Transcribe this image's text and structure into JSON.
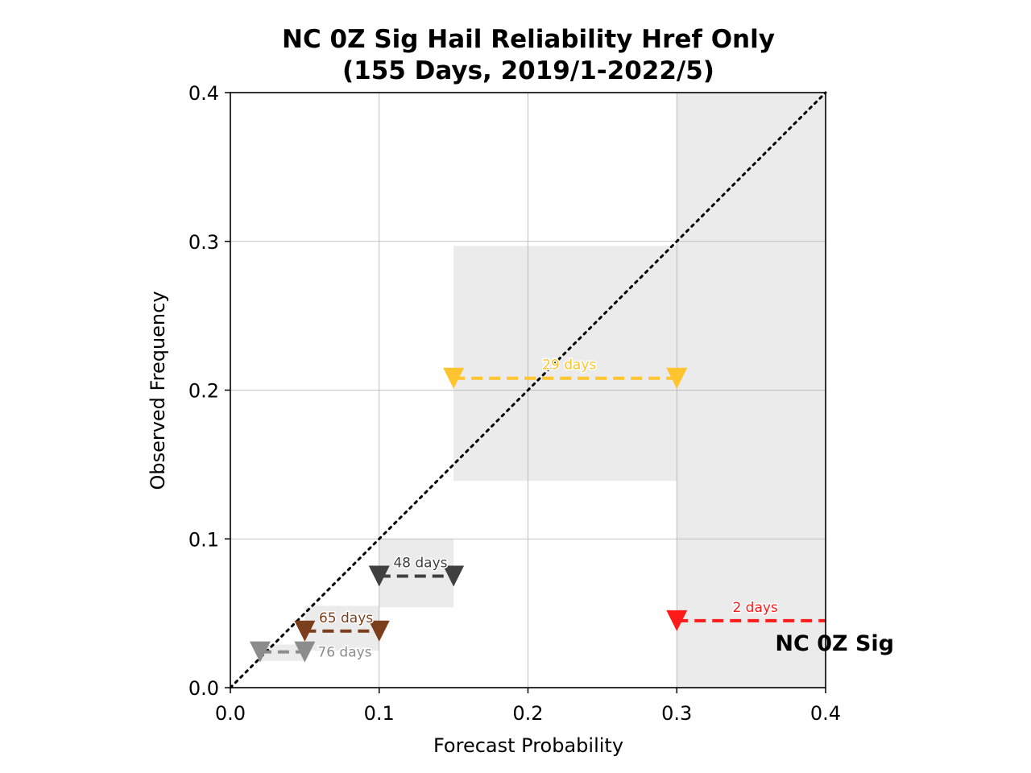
{
  "chart_data": {
    "type": "scatter",
    "title_line1": "NC 0Z Sig Hail Reliability Href Only",
    "title_line2": "(155 Days, 2019/1-2022/5)",
    "xlabel": "Forecast Probability",
    "ylabel": "Observed Frequency",
    "xlim": [
      0,
      0.4
    ],
    "ylim": [
      0,
      0.4
    ],
    "xticks": [
      0.0,
      0.1,
      0.2,
      0.3,
      0.4
    ],
    "xtick_labels": [
      "0.0",
      "0.1",
      "0.2",
      "0.3",
      "0.4"
    ],
    "yticks": [
      0.0,
      0.1,
      0.2,
      0.3,
      0.4
    ],
    "ytick_labels": [
      "0.0",
      "0.1",
      "0.2",
      "0.3",
      "0.4"
    ],
    "grid": true,
    "diagonal": {
      "from": [
        0,
        0
      ],
      "to": [
        0.4,
        0.4
      ],
      "style": "dotted",
      "color": "#000000"
    },
    "bins": [
      {
        "label": "76 days",
        "x_range": [
          0.02,
          0.05
        ],
        "y": 0.024,
        "band": [
          0.018,
          0.029
        ],
        "color": "#8c8c8c",
        "label_pos": "right"
      },
      {
        "label": "65 days",
        "x_range": [
          0.05,
          0.1
        ],
        "y": 0.038,
        "band": [
          0.025,
          0.055
        ],
        "color": "#7b3f1e",
        "label_pos": "above"
      },
      {
        "label": "48 days",
        "x_range": [
          0.1,
          0.15
        ],
        "y": 0.075,
        "band": [
          0.054,
          0.1
        ],
        "color": "#404040",
        "label_pos": "above"
      },
      {
        "label": "29 days",
        "x_range": [
          0.15,
          0.3
        ],
        "y": 0.208,
        "band": [
          0.139,
          0.297
        ],
        "color": "#ffc42e",
        "label_pos": "above"
      },
      {
        "label": "2 days",
        "x_range": [
          0.3,
          0.4
        ],
        "y": 0.045,
        "band": [
          0.0,
          0.4
        ],
        "color": "#ff1a1a",
        "label_pos": "above"
      }
    ],
    "corner_label": "NC 0Z Sig"
  }
}
